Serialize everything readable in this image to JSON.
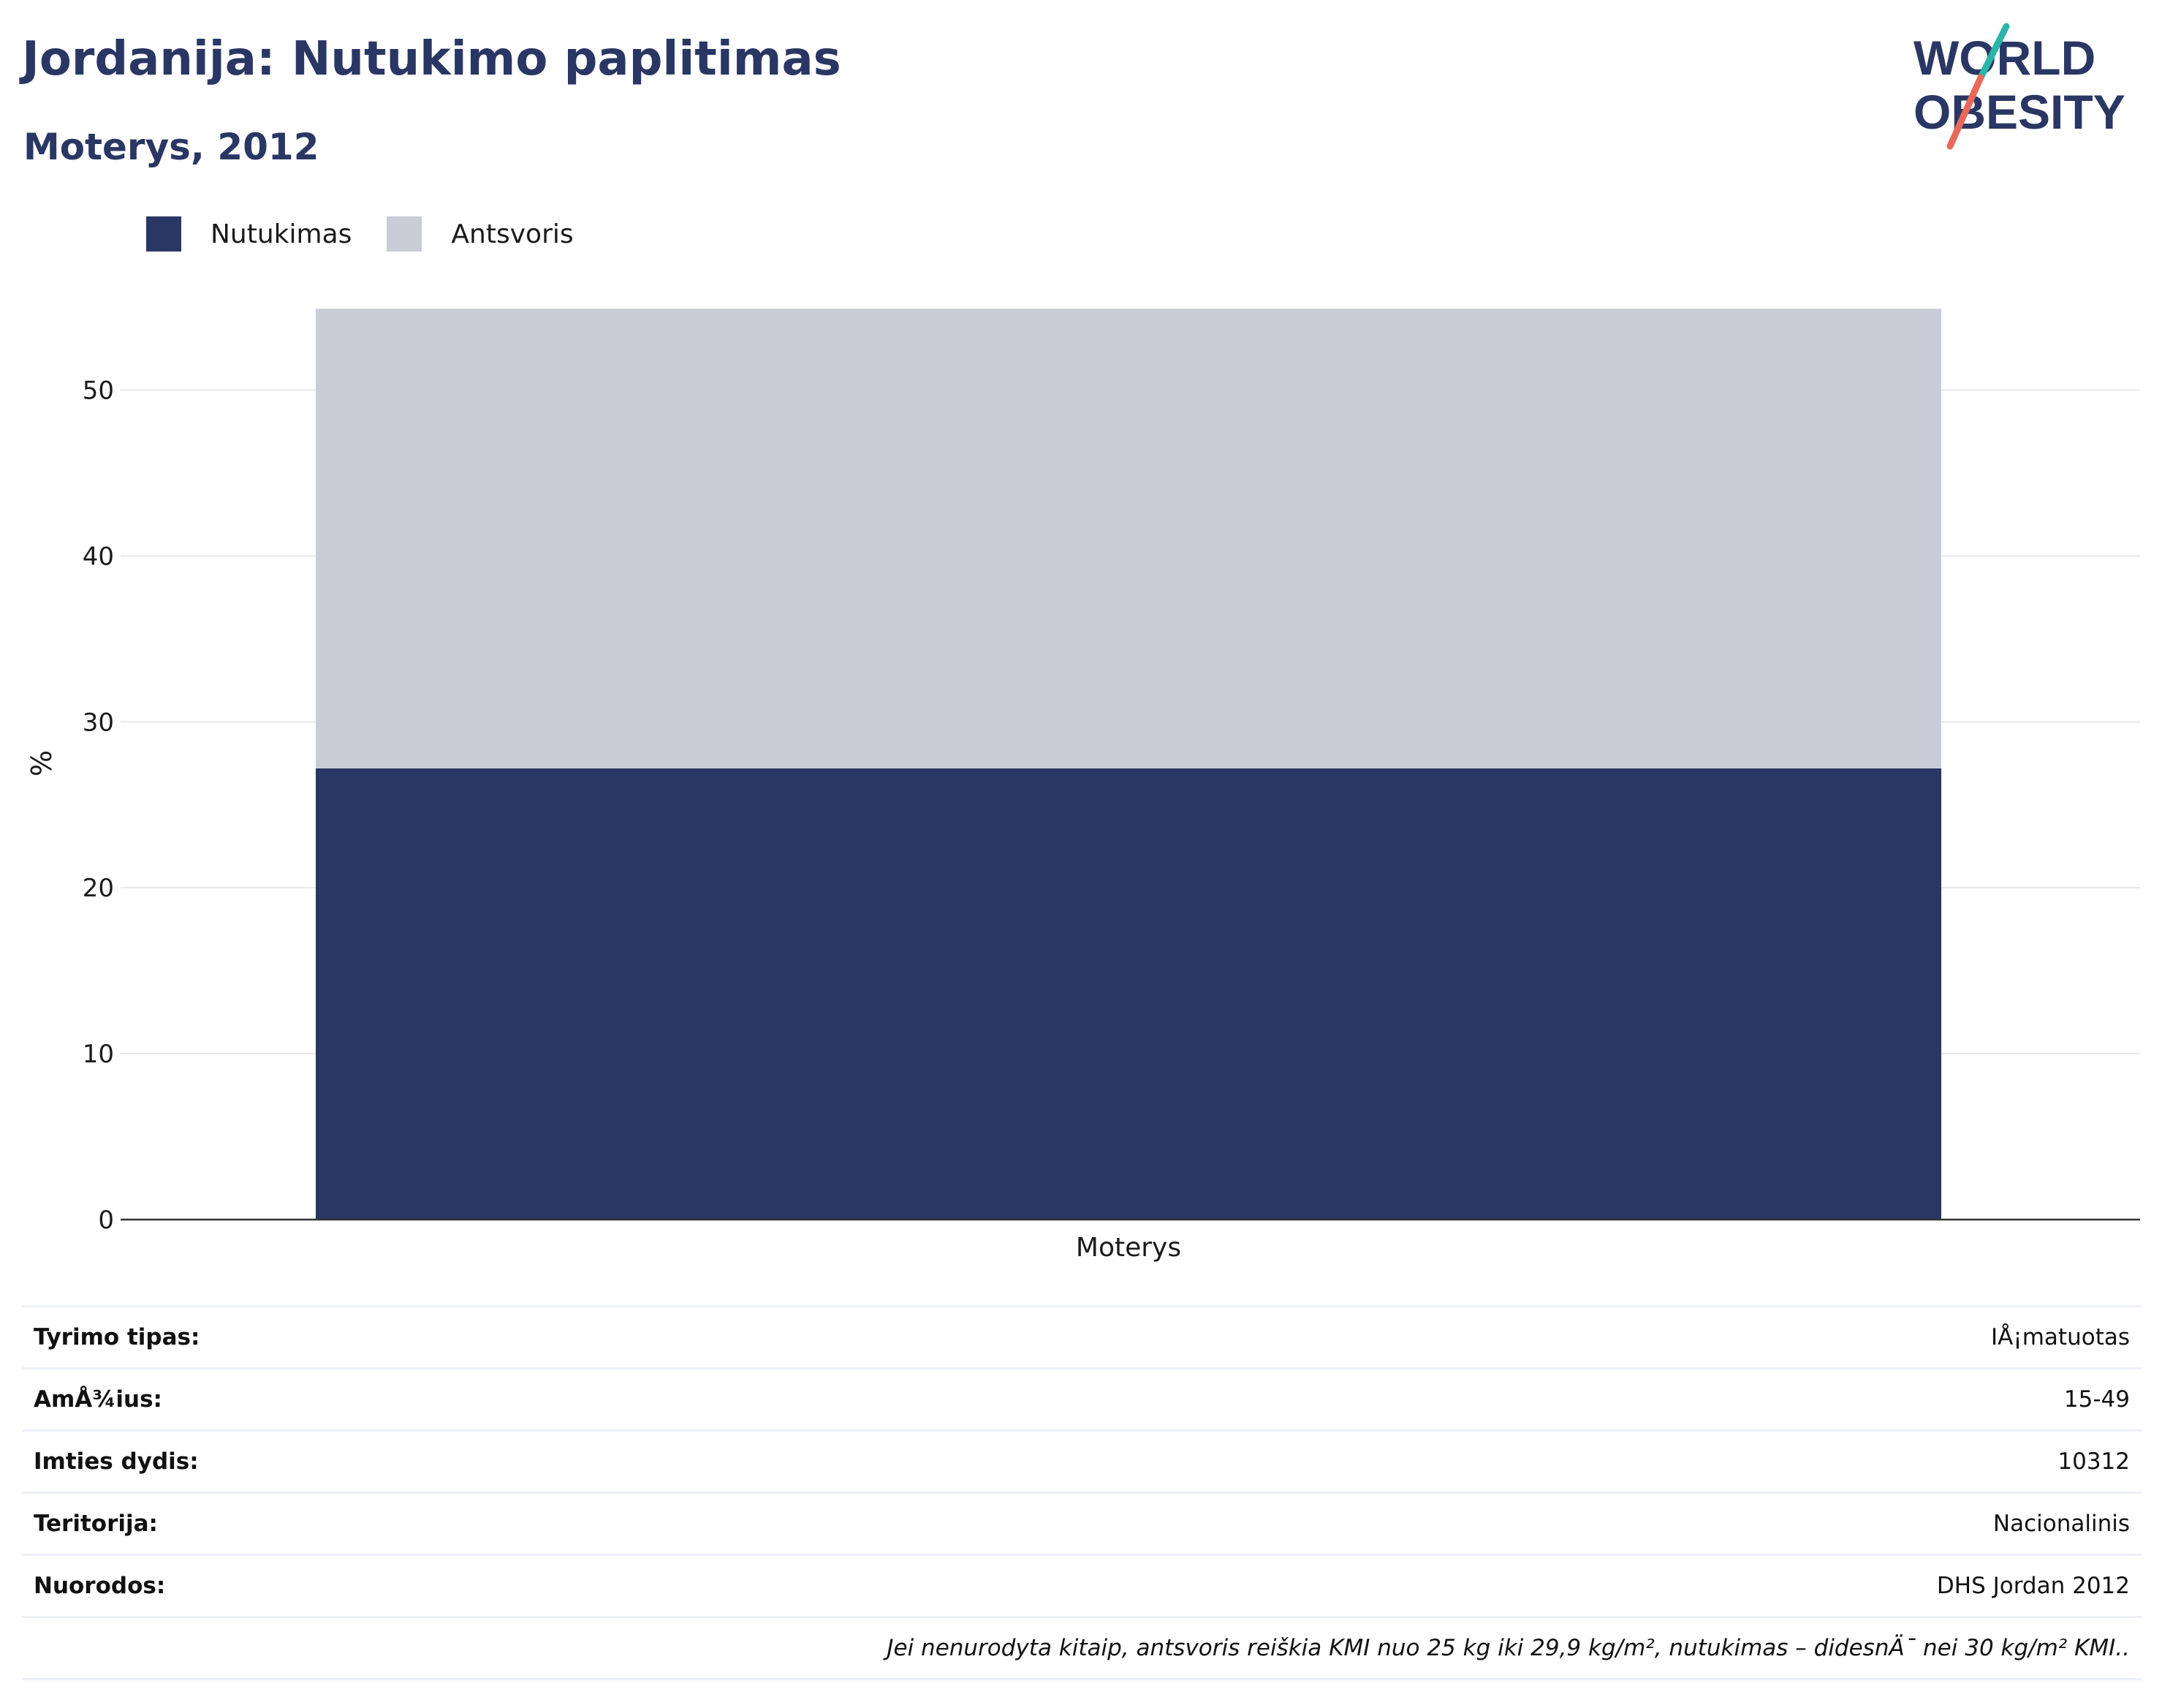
{
  "header": {
    "title": "Jordanija: Nutukimo paplitimas",
    "subtitle": "Moterys, 2012"
  },
  "logo": {
    "line1": "WORLD",
    "line2": "OBESITY",
    "colors": {
      "text": "#2a3764",
      "slash_top": "#2bb5a8",
      "slash_bottom": "#e8695a"
    }
  },
  "legend": [
    {
      "label": "Nutukimas",
      "color": "#2a3764"
    },
    {
      "label": "Antsvoris",
      "color": "#cacdd8"
    }
  ],
  "chart_data": {
    "type": "bar",
    "stacked": true,
    "categories": [
      "Moterys"
    ],
    "series": [
      {
        "name": "Nutukimas",
        "values": [
          27.2
        ],
        "color": "#2a3764"
      },
      {
        "name": "Antsvoris",
        "values": [
          27.7
        ],
        "color": "#cacdd8"
      }
    ],
    "ylabel": "%",
    "ylim": [
      0,
      55
    ],
    "yticks": [
      0,
      10,
      20,
      30,
      40,
      50
    ],
    "grid": true,
    "legend_position": "top-left"
  },
  "info": {
    "rows": [
      {
        "key": "Tyrimo tipas:",
        "value": "IÅ¡matuotas"
      },
      {
        "key": "AmÅ¾ius:",
        "value": "15-49"
      },
      {
        "key": "Imties dydis:",
        "value": "10312"
      },
      {
        "key": "Teritorija:",
        "value": "Nacionalinis"
      },
      {
        "key": "Nuorodos:",
        "value": "DHS Jordan 2012"
      }
    ],
    "note": "Jei nenurodyta kitaip, antsvoris reiškia KMI nuo 25 kg iki 29,9 kg/m², nutukimas – didesnÄ¯ nei 30 kg/m² KMI.."
  }
}
